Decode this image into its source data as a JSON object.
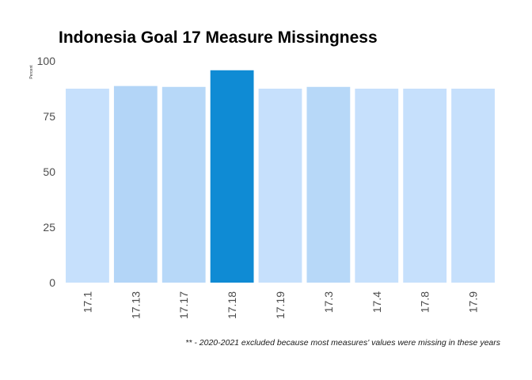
{
  "chart_data": {
    "type": "bar",
    "title": "Indonesia Goal 17 Measure Missingness",
    "xlabel": "",
    "ylabel": "Percent",
    "categories": [
      "17.1",
      "17.13",
      "17.17",
      "17.18",
      "17.19",
      "17.3",
      "17.4",
      "17.8",
      "17.9"
    ],
    "values": [
      87.5,
      88.7,
      88.3,
      95.8,
      87.5,
      88.3,
      87.5,
      87.5,
      87.5
    ],
    "ylim": [
      0,
      100
    ],
    "yticks": [
      0,
      25,
      50,
      75,
      100
    ],
    "grid": false,
    "legend": "none",
    "bar_colors": [
      "#c6e0fc",
      "#b3d5f7",
      "#b7d8f8",
      "#0f8bd4",
      "#c6e0fc",
      "#b7d8f8",
      "#c6e0fc",
      "#c6e0fc",
      "#c6e0fc"
    ],
    "caption": "** - 2020-2021 excluded because most measures' values were missing in these years"
  }
}
